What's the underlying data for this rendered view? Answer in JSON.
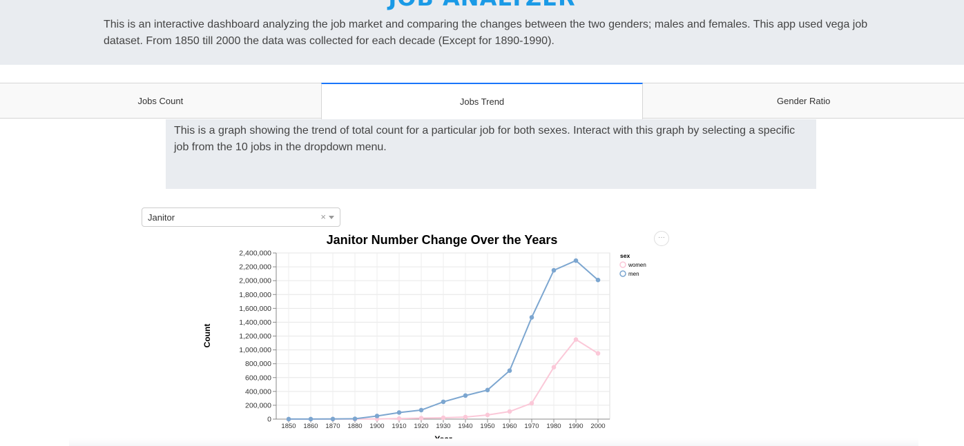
{
  "header": {
    "app_title": "JOB ANALYZER",
    "intro": "This is an interactive dashboard analyzing the job market and comparing the changes between the two genders; males and females. This app used vega job dataset. From 1850 till 2000 the data was collected for each decade (Except for 1890-1990)."
  },
  "tabs": [
    {
      "label": "Jobs Count",
      "active": false
    },
    {
      "label": "Jobs Trend",
      "active": true
    },
    {
      "label": "Gender Ratio",
      "active": false
    }
  ],
  "description": "This is a graph showing the trend of total count for a particular job for both sexes. Interact with this graph by selecting a specific job from the 10 jobs in the dropdown menu.",
  "dropdown": {
    "selected": "Janitor",
    "clear_symbol": "×"
  },
  "chart_menu": {
    "icon": "ellipsis-icon",
    "symbol": "···"
  },
  "chart_data": {
    "type": "line",
    "title": "Janitor Number Change Over the Years",
    "xlabel": "Year",
    "ylabel": "Count",
    "x": [
      1850,
      1860,
      1870,
      1880,
      1900,
      1910,
      1920,
      1930,
      1940,
      1950,
      1960,
      1970,
      1980,
      1990,
      2000
    ],
    "ylim": [
      0,
      2400000
    ],
    "yticks": [
      0,
      200000,
      400000,
      600000,
      800000,
      1000000,
      1200000,
      1400000,
      1600000,
      1800000,
      2000000,
      2200000,
      2400000
    ],
    "grid": true,
    "legend": {
      "title": "sex",
      "placement": "right"
    },
    "series": [
      {
        "name": "women",
        "color": "#fbc8d8",
        "values": [
          0,
          0,
          500,
          1000,
          3000,
          8000,
          15000,
          20000,
          30000,
          60000,
          110000,
          230000,
          750000,
          1150000,
          950000
        ]
      },
      {
        "name": "men",
        "color": "#7ca6d0",
        "values": [
          500,
          1000,
          2000,
          5000,
          45000,
          95000,
          130000,
          250000,
          340000,
          420000,
          700000,
          1470000,
          2150000,
          2290000,
          2010000
        ]
      }
    ]
  }
}
